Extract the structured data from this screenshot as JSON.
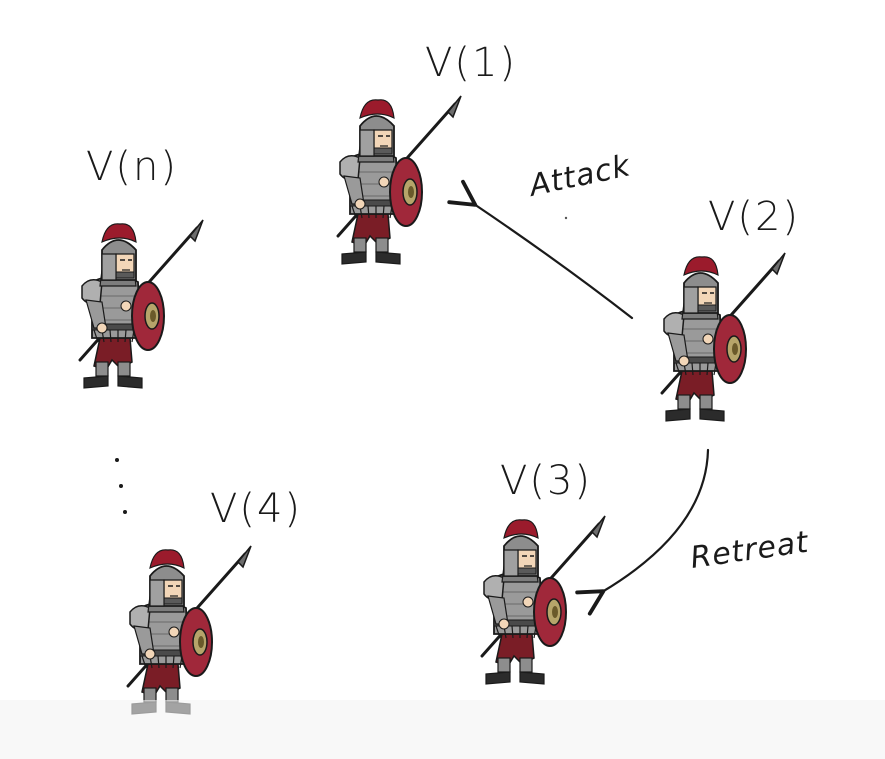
{
  "nodes": [
    {
      "id": "v1",
      "label": "V(1)"
    },
    {
      "id": "v2",
      "label": "V(2)"
    },
    {
      "id": "v3",
      "label": "V(3)"
    },
    {
      "id": "v4",
      "label": "V(4)"
    },
    {
      "id": "vn",
      "label": "V(n)"
    }
  ],
  "edges": [
    {
      "from": "v2",
      "to": "v1",
      "label": "Attack"
    },
    {
      "from": "v2",
      "to": "v3",
      "label": "Retreat"
    }
  ],
  "colors": {
    "armor": "#8d8d8d",
    "armor_dark": "#5a5a5a",
    "plume": "#9b1b2c",
    "shield": "#a0283a",
    "shield_boss": "#b6a56a",
    "trousers": "#7a1d26",
    "skin": "#f2d6b8",
    "boots": "#2b2b2b",
    "ink": "#1a1a1a"
  }
}
